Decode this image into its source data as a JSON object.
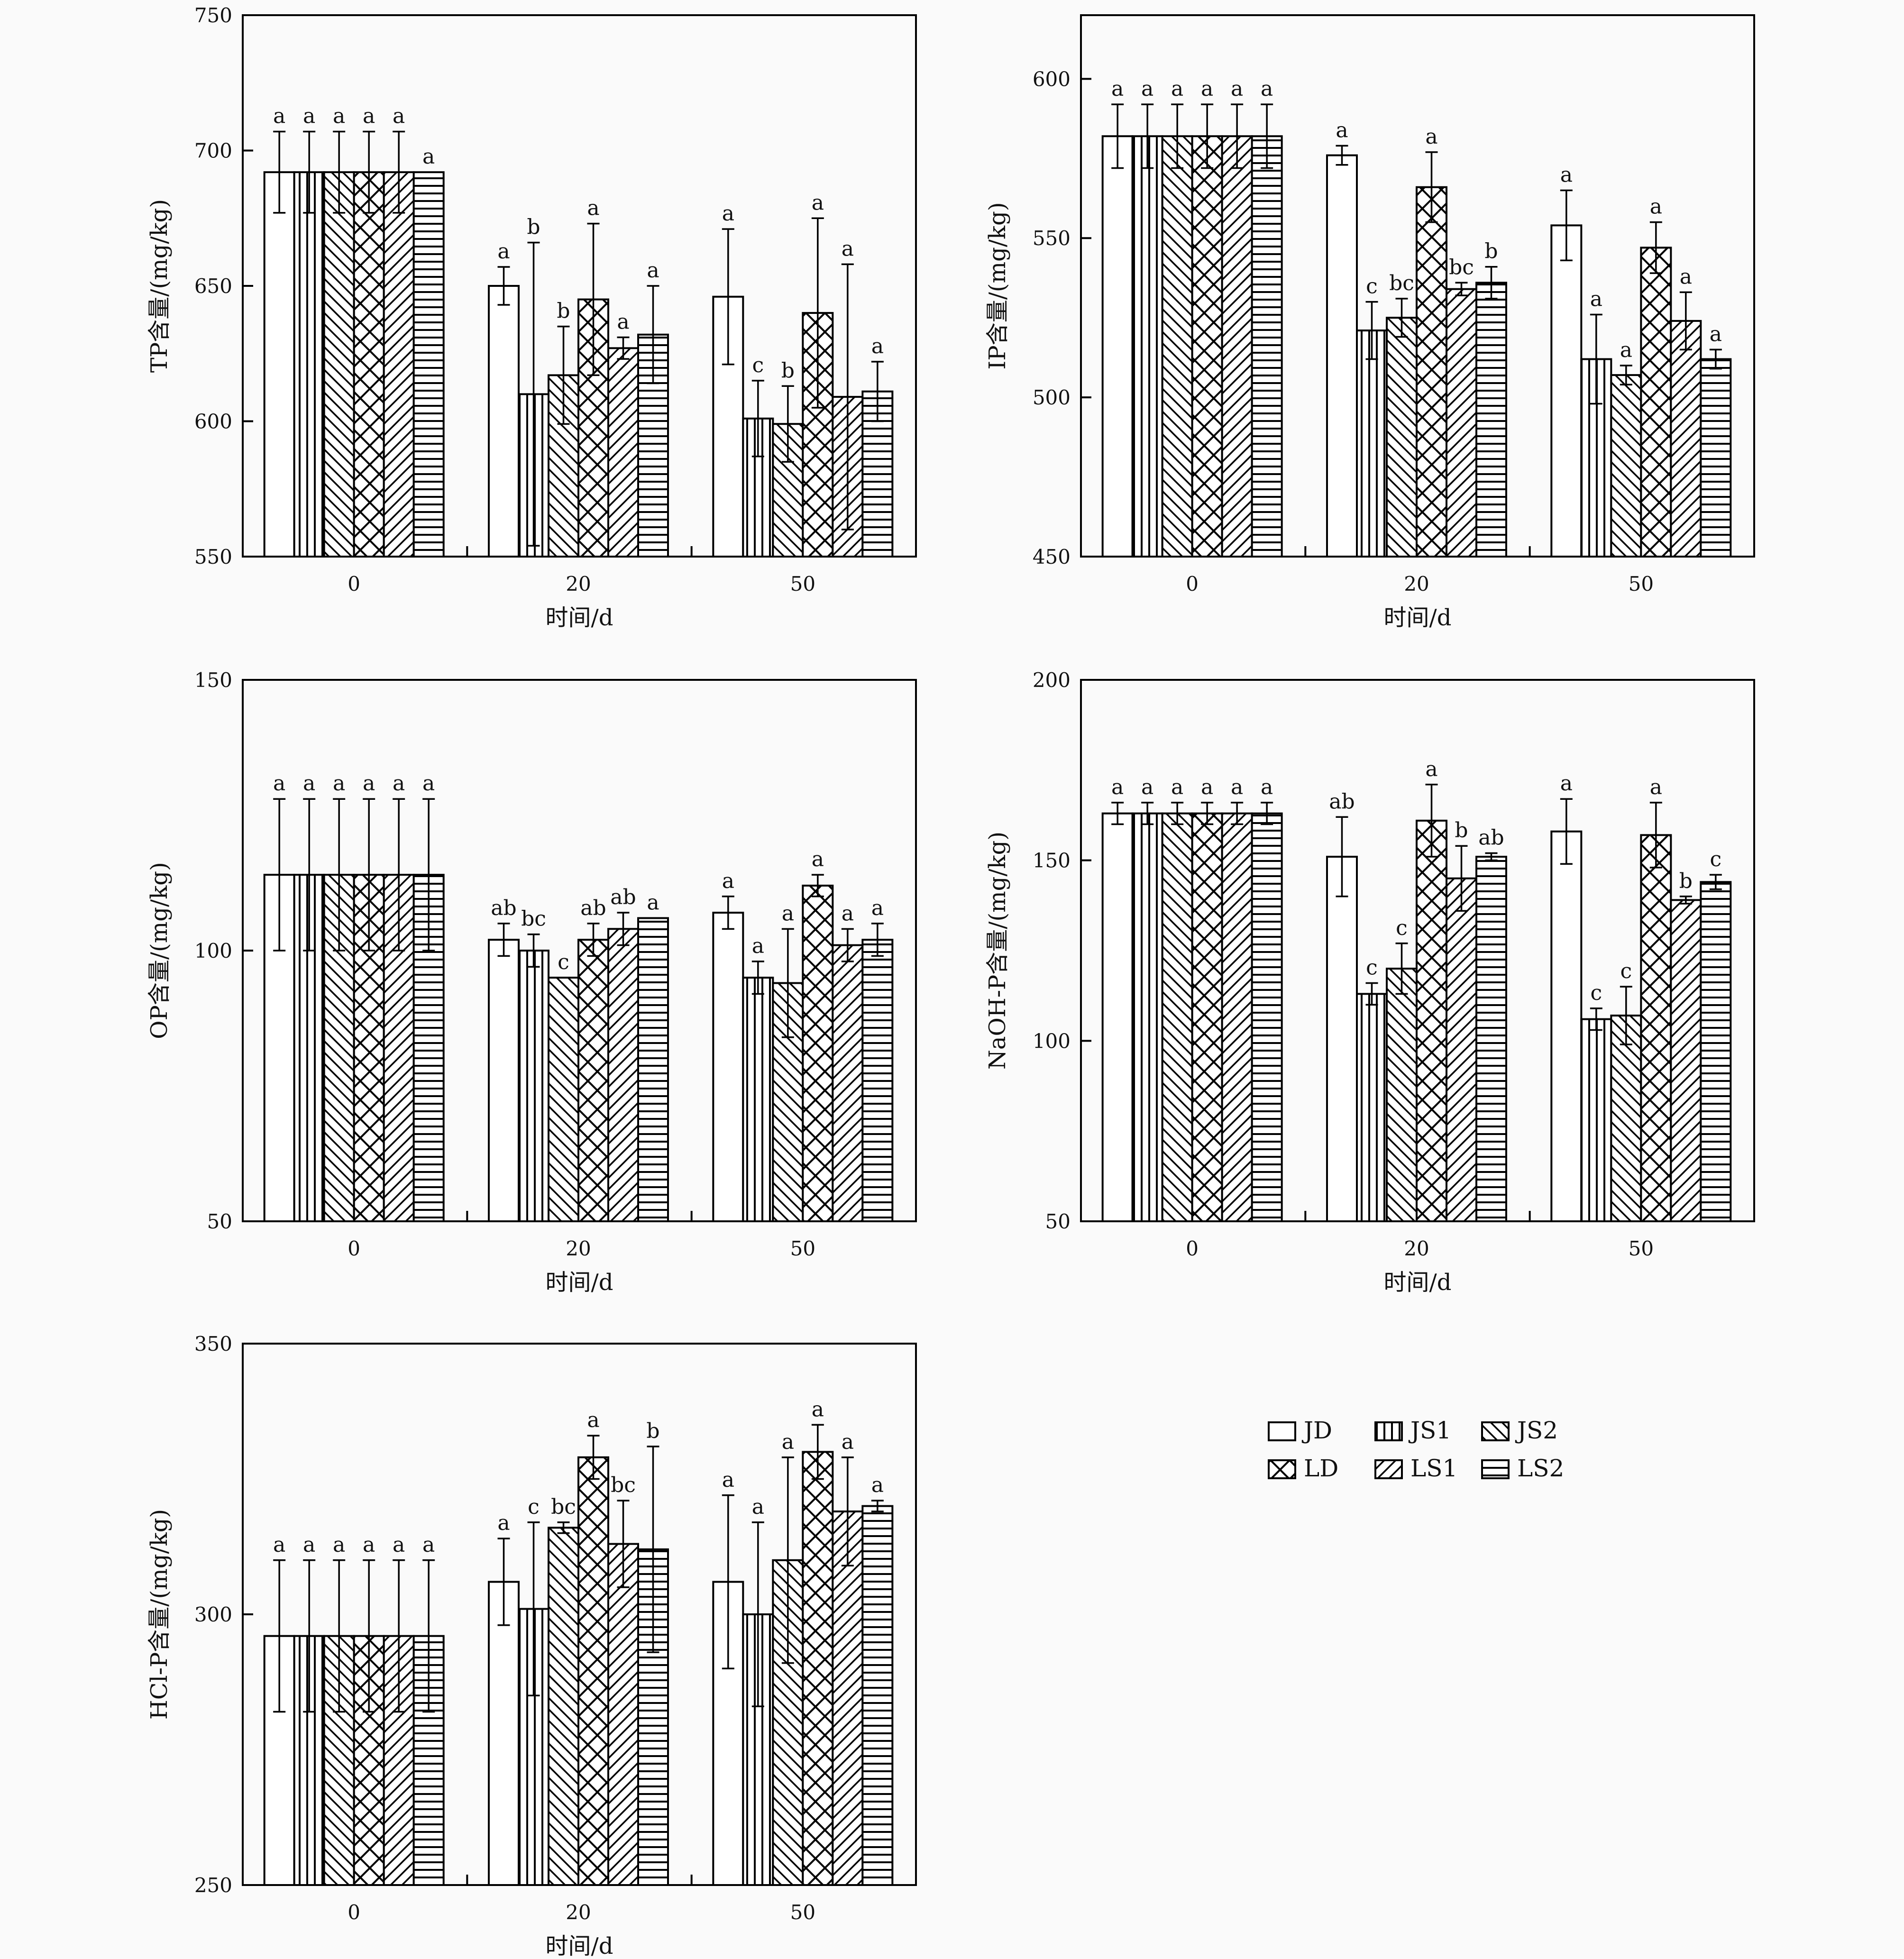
{
  "legend": {
    "position": "right of bottom-left panel",
    "items": [
      {
        "name": "JD",
        "pattern": "blank"
      },
      {
        "name": "JS1",
        "pattern": "vertical"
      },
      {
        "name": "JS2",
        "pattern": "diag-down"
      },
      {
        "name": "LD",
        "pattern": "cross"
      },
      {
        "name": "LS1",
        "pattern": "diag-up"
      },
      {
        "name": "LS2",
        "pattern": "horizontal"
      }
    ]
  },
  "chart_data": [
    {
      "type": "bar",
      "xlabel": "时间/d",
      "ylabel": "TP含量/(mg/kg)",
      "categories": [
        "0",
        "20",
        "50"
      ],
      "ylim": [
        550,
        750
      ],
      "yticks": [
        550,
        600,
        650,
        700,
        750
      ],
      "series": [
        {
          "name": "JD",
          "values": [
            692,
            650,
            646
          ],
          "errors": [
            15,
            7,
            25
          ],
          "labels": [
            "a",
            "a",
            "a"
          ]
        },
        {
          "name": "JS1",
          "values": [
            692,
            610,
            601
          ],
          "errors": [
            15,
            56,
            14
          ],
          "labels": [
            "a",
            "b",
            "c"
          ]
        },
        {
          "name": "JS2",
          "values": [
            692,
            617,
            599
          ],
          "errors": [
            15,
            18,
            14
          ],
          "labels": [
            "a",
            "b",
            "b"
          ]
        },
        {
          "name": "LD",
          "values": [
            692,
            645,
            640
          ],
          "errors": [
            15,
            28,
            35
          ],
          "labels": [
            "a",
            "a",
            "a"
          ]
        },
        {
          "name": "LS1",
          "values": [
            692,
            627,
            609
          ],
          "errors": [
            15,
            4,
            49
          ],
          "labels": [
            "a",
            "a",
            "a"
          ]
        },
        {
          "name": "LS2",
          "values": [
            692,
            632,
            611
          ],
          "errors": [
            0,
            18,
            11
          ],
          "labels": [
            "a",
            "a",
            "a"
          ]
        }
      ]
    },
    {
      "type": "bar",
      "xlabel": "时间/d",
      "ylabel": "IP含量/(mg/kg)",
      "categories": [
        "0",
        "20",
        "50"
      ],
      "ylim": [
        450,
        620
      ],
      "yticks": [
        450,
        500,
        550,
        600
      ],
      "series": [
        {
          "name": "JD",
          "values": [
            582,
            576,
            554
          ],
          "errors": [
            10,
            3,
            11
          ],
          "labels": [
            "a",
            "a",
            "a"
          ]
        },
        {
          "name": "JS1",
          "values": [
            582,
            521,
            512
          ],
          "errors": [
            10,
            9,
            14
          ],
          "labels": [
            "a",
            "c",
            "a"
          ]
        },
        {
          "name": "JS2",
          "values": [
            582,
            525,
            507
          ],
          "errors": [
            10,
            6,
            3
          ],
          "labels": [
            "a",
            "bc",
            "a"
          ]
        },
        {
          "name": "LD",
          "values": [
            582,
            566,
            547
          ],
          "errors": [
            10,
            11,
            8
          ],
          "labels": [
            "a",
            "a",
            "a"
          ]
        },
        {
          "name": "LS1",
          "values": [
            582,
            534,
            524
          ],
          "errors": [
            10,
            2,
            9
          ],
          "labels": [
            "a",
            "bc",
            "a"
          ]
        },
        {
          "name": "LS2",
          "values": [
            582,
            536,
            512
          ],
          "errors": [
            10,
            5,
            3
          ],
          "labels": [
            "a",
            "b",
            "a"
          ]
        }
      ]
    },
    {
      "type": "bar",
      "xlabel": "时间/d",
      "ylabel": "OP含量/(mg/kg)",
      "categories": [
        "0",
        "20",
        "50"
      ],
      "ylim": [
        50,
        150
      ],
      "yticks": [
        50,
        100,
        150
      ],
      "series": [
        {
          "name": "JD",
          "values": [
            114,
            102,
            107
          ],
          "errors": [
            14,
            3,
            3
          ],
          "labels": [
            "a",
            "ab",
            "a"
          ]
        },
        {
          "name": "JS1",
          "values": [
            114,
            100,
            95
          ],
          "errors": [
            14,
            3,
            3
          ],
          "labels": [
            "a",
            "bc",
            "a"
          ]
        },
        {
          "name": "JS2",
          "values": [
            114,
            95,
            94
          ],
          "errors": [
            14,
            0,
            10
          ],
          "labels": [
            "a",
            "c",
            "a"
          ]
        },
        {
          "name": "LD",
          "values": [
            114,
            102,
            112
          ],
          "errors": [
            14,
            3,
            2
          ],
          "labels": [
            "a",
            "ab",
            "a"
          ]
        },
        {
          "name": "LS1",
          "values": [
            114,
            104,
            101
          ],
          "errors": [
            14,
            3,
            3
          ],
          "labels": [
            "a",
            "ab",
            "a"
          ]
        },
        {
          "name": "LS2",
          "values": [
            114,
            106,
            102
          ],
          "errors": [
            14,
            0,
            3
          ],
          "labels": [
            "a",
            "a",
            "a"
          ]
        }
      ]
    },
    {
      "type": "bar",
      "xlabel": "时间/d",
      "ylabel": "NaOH-P含量/(mg/kg)",
      "categories": [
        "0",
        "20",
        "50"
      ],
      "ylim": [
        50,
        200
      ],
      "yticks": [
        50,
        100,
        150,
        200
      ],
      "series": [
        {
          "name": "JD",
          "values": [
            163,
            151,
            158
          ],
          "errors": [
            3,
            11,
            9
          ],
          "labels": [
            "a",
            "ab",
            "a"
          ]
        },
        {
          "name": "JS1",
          "values": [
            163,
            113,
            106
          ],
          "errors": [
            3,
            3,
            3
          ],
          "labels": [
            "a",
            "c",
            "c"
          ]
        },
        {
          "name": "JS2",
          "values": [
            163,
            120,
            107
          ],
          "errors": [
            3,
            7,
            8
          ],
          "labels": [
            "a",
            "c",
            "c"
          ]
        },
        {
          "name": "LD",
          "values": [
            163,
            161,
            157
          ],
          "errors": [
            3,
            10,
            9
          ],
          "labels": [
            "a",
            "a",
            "a"
          ]
        },
        {
          "name": "LS1",
          "values": [
            163,
            145,
            139
          ],
          "errors": [
            3,
            9,
            1
          ],
          "labels": [
            "a",
            "b",
            "b"
          ]
        },
        {
          "name": "LS2",
          "values": [
            163,
            151,
            144
          ],
          "errors": [
            3,
            1,
            2
          ],
          "labels": [
            "a",
            "ab",
            "c"
          ]
        }
      ]
    },
    {
      "type": "bar",
      "xlabel": "时间/d",
      "ylabel": "HCl-P含量/(mg/kg)",
      "categories": [
        "0",
        "20",
        "50"
      ],
      "ylim": [
        250,
        350
      ],
      "yticks": [
        250,
        300,
        350
      ],
      "series": [
        {
          "name": "JD",
          "values": [
            296,
            306,
            306
          ],
          "errors": [
            14,
            8,
            16
          ],
          "labels": [
            "a",
            "a",
            "a"
          ]
        },
        {
          "name": "JS1",
          "values": [
            296,
            301,
            300
          ],
          "errors": [
            14,
            16,
            17
          ],
          "labels": [
            "a",
            "c",
            "a"
          ]
        },
        {
          "name": "JS2",
          "values": [
            296,
            316,
            310
          ],
          "errors": [
            14,
            1,
            19
          ],
          "labels": [
            "a",
            "bc",
            "a"
          ]
        },
        {
          "name": "LD",
          "values": [
            296,
            329,
            330
          ],
          "errors": [
            14,
            4,
            5
          ],
          "labels": [
            "a",
            "a",
            "a"
          ]
        },
        {
          "name": "LS1",
          "values": [
            296,
            313,
            319
          ],
          "errors": [
            14,
            8,
            10
          ],
          "labels": [
            "a",
            "bc",
            "a"
          ]
        },
        {
          "name": "LS2",
          "values": [
            296,
            312,
            320
          ],
          "errors": [
            14,
            19,
            1
          ],
          "labels": [
            "a",
            "b",
            "a"
          ]
        }
      ]
    }
  ]
}
